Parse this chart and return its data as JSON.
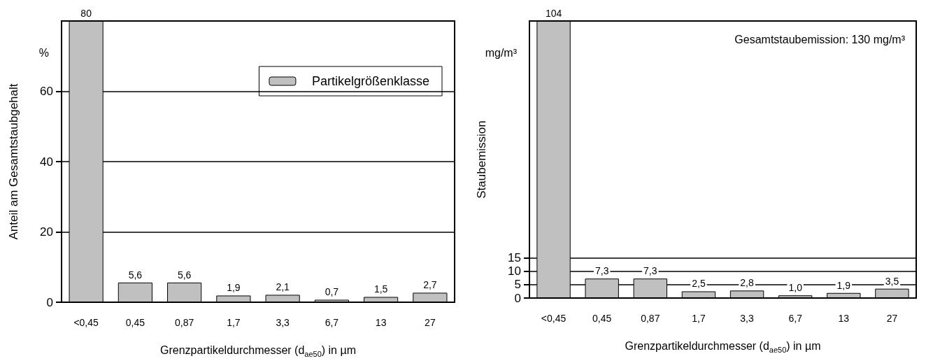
{
  "chart_data": [
    {
      "type": "bar",
      "categories": [
        "<0,45",
        "0,45",
        "0,87",
        "1,7",
        "3,3",
        "6,7",
        "13",
        "27"
      ],
      "series": [
        {
          "name": "Partikelgrößenklasse",
          "color": "#c0c0c0",
          "values": [
            80,
            5.6,
            5.6,
            1.9,
            2.1,
            0.7,
            1.5,
            2.7
          ],
          "value_labels": [
            "80",
            "5,6",
            "5,6",
            "1,9",
            "2,1",
            "0,7",
            "1,5",
            "2,7"
          ]
        }
      ],
      "ylim": [
        0,
        80
      ],
      "yticks": [
        0,
        20,
        40,
        60
      ],
      "grid": "y",
      "legend": "top right",
      "ylabel": "Anteil am Gesamtstaubgehalt",
      "xlabel": "Grenzpartikeldurchmesser (d$_{ae50}$) in µm",
      "annotations": [
        "%"
      ]
    },
    {
      "type": "bar",
      "categories": [
        "<0,45",
        "0,45",
        "0,87",
        "1,7",
        "3,3",
        "6,7",
        "13",
        "27"
      ],
      "series": [
        {
          "color": "#c0c0c0",
          "values": [
            104,
            7.3,
            7.3,
            2.5,
            2.8,
            1.0,
            1.9,
            3.5
          ],
          "value_labels": [
            "104",
            "7,3",
            "7,3",
            "2,5",
            "2,8",
            "1,0",
            "1,9",
            "3,5"
          ]
        }
      ],
      "ylim": [
        0,
        104
      ],
      "yticks": [
        0,
        5,
        10,
        15
      ],
      "grid": "y",
      "legend": false,
      "ylabel": "Staubemission",
      "xlabel": "Grenzpartikeldurchmesser (d$_{ae50}$) in µm",
      "annotations": [
        "mg/m³",
        "Gesamtstaubemission: 130 mg/m³"
      ]
    }
  ]
}
